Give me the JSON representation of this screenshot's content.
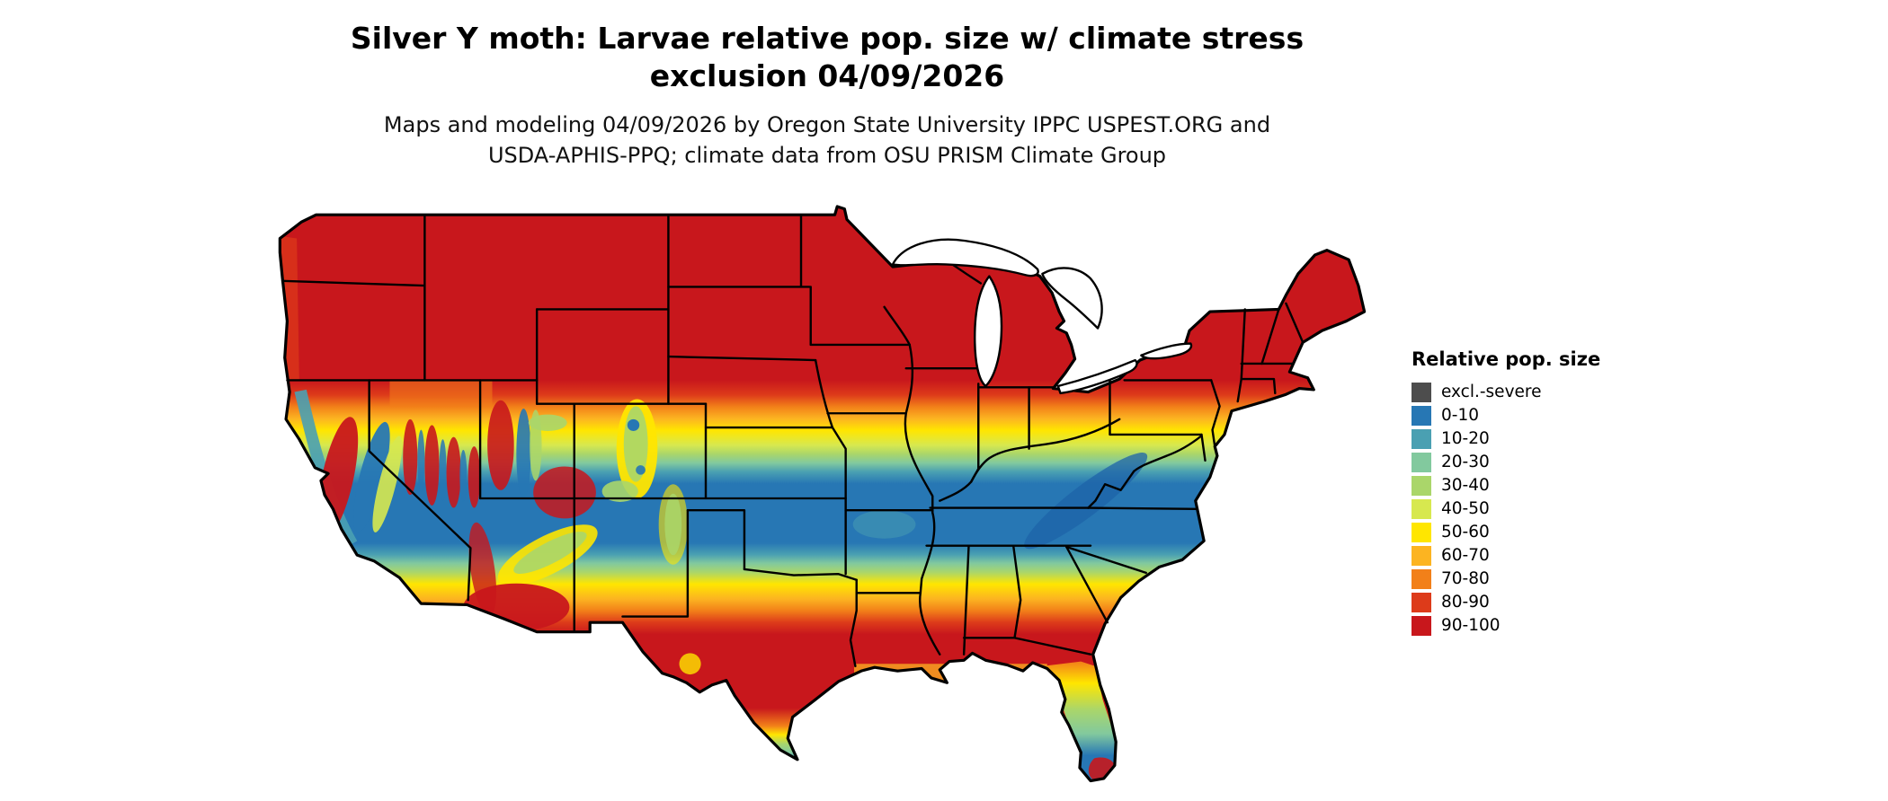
{
  "title": {
    "line1": "Silver Y moth: Larvae relative pop. size w/ climate stress",
    "line2": "exclusion 04/09/2026"
  },
  "subtitle": {
    "line1": "Maps and modeling 04/09/2026 by Oregon State University IPPC USPEST.ORG and",
    "line2": "USDA-APHIS-PPQ; climate data from OSU PRISM Climate Group"
  },
  "legend": {
    "title": "Relative pop. size",
    "items": [
      {
        "label": "excl.-severe",
        "color": "#4d4d4d"
      },
      {
        "label": "0-10",
        "color": "#2777b4"
      },
      {
        "label": "10-20",
        "color": "#4aa0b2"
      },
      {
        "label": "20-30",
        "color": "#82c99e"
      },
      {
        "label": "30-40",
        "color": "#aad66a"
      },
      {
        "label": "40-50",
        "color": "#d7e84f"
      },
      {
        "label": "50-60",
        "color": "#ffe600"
      },
      {
        "label": "60-70",
        "color": "#fcb421"
      },
      {
        "label": "70-80",
        "color": "#f28019"
      },
      {
        "label": "80-90",
        "color": "#dd3b1a"
      },
      {
        "label": "90-100",
        "color": "#c8171c"
      }
    ]
  },
  "palette": {
    "excl": "#4d4d4d",
    "p0": "#2777b4",
    "p10": "#4aa0b2",
    "p20": "#82c99e",
    "p30": "#aad66a",
    "p40": "#d7e84f",
    "p50": "#ffe600",
    "p60": "#fcb421",
    "p70": "#f28019",
    "p80": "#dd3b1a",
    "p90": "#c8171c",
    "deep_blue": "#1d63a8",
    "border": "#000000",
    "water": "#ffffff"
  }
}
